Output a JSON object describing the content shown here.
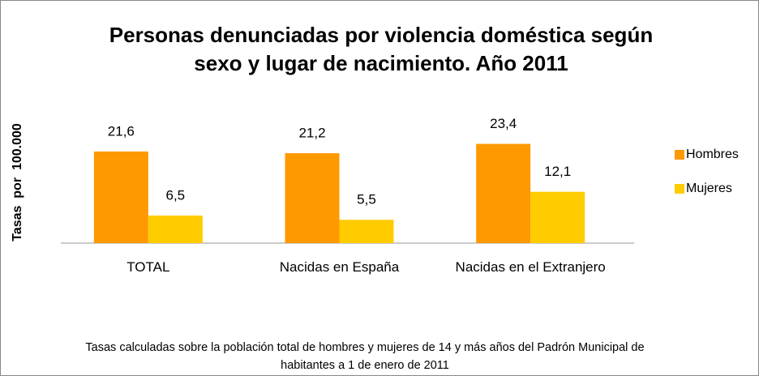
{
  "chart_data": {
    "type": "bar",
    "title": "Personas denunciadas por violencia doméstica según sexo y lugar de nacimiento. Año 2011",
    "y_label": "Tasas  por  100.000",
    "note": "Tasas calculadas sobre la población total de hombres y mujeres de 14 y más años del Padrón Municipal de habitantes a 1 de enero de 2011",
    "categories": [
      "TOTAL",
      "Nacidas en España",
      "Nacidas en el Extranjero"
    ],
    "series": [
      {
        "name": "Hombres",
        "color": "#ff9900",
        "values": [
          21.6,
          21.2,
          23.4
        ],
        "value_labels": [
          "21,6",
          "21,2",
          "23,4"
        ]
      },
      {
        "name": "Mujeres",
        "color": "#ffcc00",
        "values": [
          6.5,
          5.5,
          12.1
        ],
        "value_labels": [
          "6,5",
          "5,5",
          "12,1"
        ]
      }
    ],
    "ylim": [
      0,
      30
    ],
    "legend": "right"
  }
}
